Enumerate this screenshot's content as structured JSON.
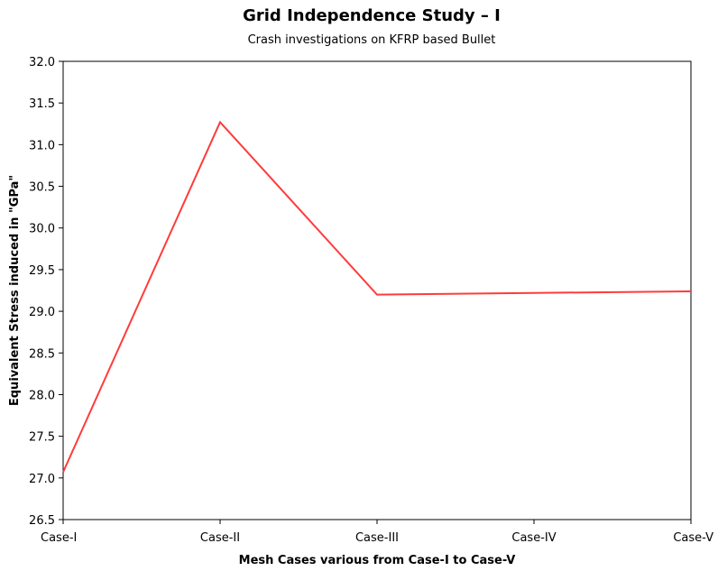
{
  "chart_data": {
    "type": "line",
    "title": "Grid Independence Study – I",
    "subtitle": "Crash investigations on KFRP based Bullet",
    "xlabel": "Mesh Cases various from Case-I to Case-V",
    "ylabel": "Equivalent Stress induced in \"GPa\"",
    "categories": [
      "Case-I",
      "Case-II",
      "Case-III",
      "Case-IV",
      "Case-V"
    ],
    "series": [
      {
        "values": [
          27.07,
          31.27,
          29.2,
          29.22,
          29.24
        ]
      }
    ],
    "ylim": [
      26.5,
      32.0
    ],
    "yticks": [
      "26.5",
      "27.0",
      "27.5",
      "28.0",
      "28.5",
      "29.0",
      "29.5",
      "30.0",
      "30.5",
      "31.0",
      "31.5",
      "32.0"
    ],
    "grid": false,
    "line_color": "#ff3b3b"
  }
}
